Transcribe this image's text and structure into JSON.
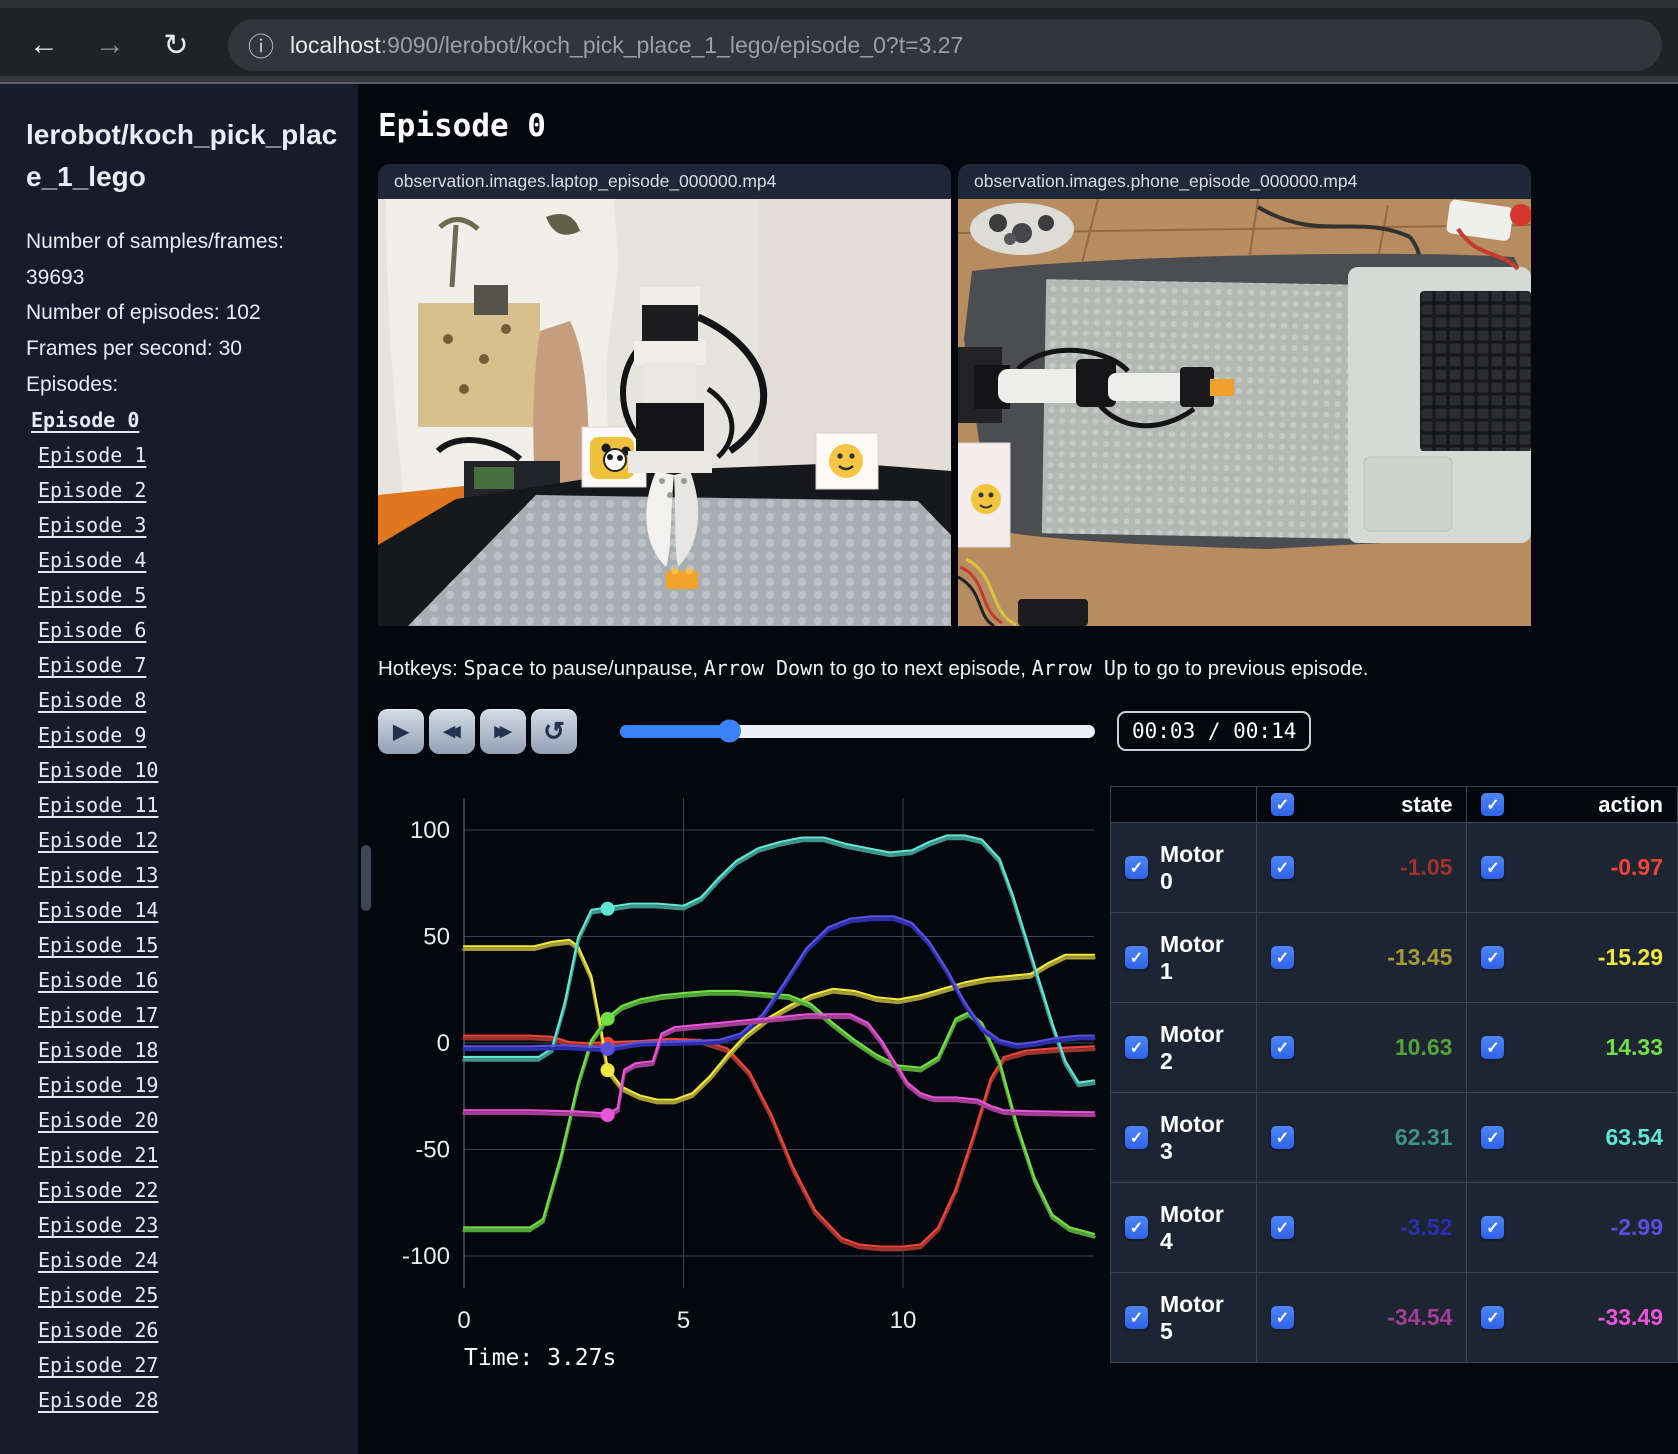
{
  "browser": {
    "url_host": "localhost",
    "url_rest": ":9090/lerobot/koch_pick_place_1_lego/episode_0?t=3.27"
  },
  "sidebar": {
    "title": "lerobot/koch_pick_place_1_lego",
    "info_lines": [
      "Number of samples/frames: 39693",
      "Number of episodes: 102",
      "Frames per second: 30",
      "Episodes:"
    ],
    "episodes": [
      "Episode 0",
      "Episode 1",
      "Episode 2",
      "Episode 3",
      "Episode 4",
      "Episode 5",
      "Episode 6",
      "Episode 7",
      "Episode 8",
      "Episode 9",
      "Episode 10",
      "Episode 11",
      "Episode 12",
      "Episode 13",
      "Episode 14",
      "Episode 15",
      "Episode 16",
      "Episode 17",
      "Episode 18",
      "Episode 19",
      "Episode 20",
      "Episode 21",
      "Episode 22",
      "Episode 23",
      "Episode 24",
      "Episode 25",
      "Episode 26",
      "Episode 27",
      "Episode 28"
    ],
    "active_episode": "Episode 0"
  },
  "main": {
    "title": "Episode 0",
    "videos": [
      {
        "label": "observation.images.laptop_episode_000000.mp4"
      },
      {
        "label": "observation.images.phone_episode_000000.mp4"
      }
    ],
    "hotkeys_segments": [
      {
        "t": "Hotkeys: ",
        "mono": false
      },
      {
        "t": "Space",
        "mono": true
      },
      {
        "t": " to pause/unpause, ",
        "mono": false
      },
      {
        "t": "Arrow Down",
        "mono": true
      },
      {
        "t": " to go to next episode, ",
        "mono": false
      },
      {
        "t": "Arrow Up",
        "mono": true
      },
      {
        "t": " to go to previous episode.",
        "mono": false
      }
    ],
    "player": {
      "time_display": "00:03 / 00:14",
      "progress_pct": 23
    }
  },
  "table": {
    "state_header": "state",
    "action_header": "action"
  },
  "chart_data": {
    "type": "line",
    "xlim": [
      0,
      14.35
    ],
    "ylim": [
      -115,
      115
    ],
    "xticks": [
      0,
      5,
      10
    ],
    "yticks": [
      100,
      50,
      0,
      -50,
      -100
    ],
    "grid": true,
    "current_time": 3.27,
    "time_label": "Time: 3.27s",
    "series": [
      {
        "name": "Motor 0",
        "state_value": "-1.05",
        "action_value": "-0.97",
        "state_color": "#9c332c",
        "action_color": "#ef453a",
        "points": [
          [
            0,
            2
          ],
          [
            1.5,
            2
          ],
          [
            2,
            1.5
          ],
          [
            2.4,
            -1
          ],
          [
            2.8,
            -1.5
          ],
          [
            3.27,
            -1.05
          ],
          [
            4,
            -0.5
          ],
          [
            4.7,
            0.5
          ],
          [
            5.4,
            0
          ],
          [
            6,
            -4
          ],
          [
            6.5,
            -15
          ],
          [
            7,
            -35
          ],
          [
            7.5,
            -60
          ],
          [
            8,
            -80
          ],
          [
            8.6,
            -93
          ],
          [
            9,
            -96
          ],
          [
            9.5,
            -97
          ],
          [
            10,
            -97
          ],
          [
            10.4,
            -96
          ],
          [
            10.8,
            -88
          ],
          [
            11.2,
            -70
          ],
          [
            11.6,
            -45
          ],
          [
            12,
            -18
          ],
          [
            12.3,
            -8
          ],
          [
            12.8,
            -5
          ],
          [
            13.4,
            -4
          ],
          [
            14.35,
            -3
          ]
        ]
      },
      {
        "name": "Motor 1",
        "state_value": "-13.45",
        "action_value": "-15.29",
        "state_color": "#a49a36",
        "action_color": "#f0e83f",
        "points": [
          [
            0,
            44
          ],
          [
            1.6,
            44
          ],
          [
            2,
            46
          ],
          [
            2.4,
            47
          ],
          [
            2.6,
            44
          ],
          [
            2.9,
            30
          ],
          [
            3.1,
            8
          ],
          [
            3.27,
            -13.45
          ],
          [
            3.6,
            -22
          ],
          [
            4,
            -26
          ],
          [
            4.4,
            -28
          ],
          [
            4.8,
            -28
          ],
          [
            5.2,
            -25
          ],
          [
            5.6,
            -17
          ],
          [
            6,
            -7
          ],
          [
            6.4,
            2
          ],
          [
            6.9,
            10
          ],
          [
            7.4,
            16
          ],
          [
            7.9,
            21
          ],
          [
            8.4,
            24
          ],
          [
            8.9,
            23
          ],
          [
            9.4,
            20
          ],
          [
            9.9,
            19
          ],
          [
            10.4,
            21
          ],
          [
            10.9,
            24
          ],
          [
            11.4,
            27
          ],
          [
            11.9,
            29
          ],
          [
            12.4,
            30
          ],
          [
            12.9,
            31
          ],
          [
            13.3,
            36
          ],
          [
            13.7,
            40
          ],
          [
            14.35,
            40
          ]
        ]
      },
      {
        "name": "Motor 2",
        "state_value": "10.63",
        "action_value": "14.33",
        "state_color": "#53a23a",
        "action_color": "#72df47",
        "points": [
          [
            0,
            -88
          ],
          [
            1.5,
            -88
          ],
          [
            1.8,
            -84
          ],
          [
            2.2,
            -55
          ],
          [
            2.6,
            -20
          ],
          [
            2.9,
            0
          ],
          [
            3.27,
            10.63
          ],
          [
            3.6,
            16
          ],
          [
            4,
            19
          ],
          [
            4.5,
            21
          ],
          [
            5,
            22
          ],
          [
            5.6,
            23
          ],
          [
            6.2,
            23
          ],
          [
            6.8,
            22
          ],
          [
            7.4,
            21
          ],
          [
            7.9,
            17
          ],
          [
            8.4,
            8
          ],
          [
            8.9,
            0
          ],
          [
            9.4,
            -7
          ],
          [
            9.9,
            -12
          ],
          [
            10.4,
            -13
          ],
          [
            10.8,
            -8
          ],
          [
            11.2,
            10
          ],
          [
            11.5,
            13
          ],
          [
            11.8,
            8
          ],
          [
            12.2,
            -10
          ],
          [
            12.6,
            -40
          ],
          [
            13,
            -65
          ],
          [
            13.4,
            -82
          ],
          [
            13.8,
            -88
          ],
          [
            14.35,
            -91
          ]
        ]
      },
      {
        "name": "Motor 3",
        "state_value": "62.31",
        "action_value": "63.54",
        "state_color": "#3f948a",
        "action_color": "#62e6d4",
        "points": [
          [
            0,
            -8
          ],
          [
            1.7,
            -8
          ],
          [
            2,
            -4
          ],
          [
            2.3,
            18
          ],
          [
            2.6,
            48
          ],
          [
            2.9,
            61
          ],
          [
            3.27,
            62.31
          ],
          [
            3.8,
            64
          ],
          [
            4.4,
            64
          ],
          [
            5,
            63
          ],
          [
            5.4,
            67
          ],
          [
            5.8,
            76
          ],
          [
            6.2,
            84
          ],
          [
            6.7,
            90
          ],
          [
            7.2,
            93
          ],
          [
            7.7,
            95
          ],
          [
            8.2,
            95
          ],
          [
            8.7,
            92
          ],
          [
            9.2,
            90
          ],
          [
            9.7,
            88
          ],
          [
            10.2,
            89
          ],
          [
            10.6,
            93
          ],
          [
            11,
            96
          ],
          [
            11.4,
            96
          ],
          [
            11.8,
            94
          ],
          [
            12.2,
            85
          ],
          [
            12.5,
            68
          ],
          [
            12.8,
            48
          ],
          [
            13.1,
            28
          ],
          [
            13.4,
            8
          ],
          [
            13.7,
            -10
          ],
          [
            14,
            -20
          ],
          [
            14.35,
            -19
          ]
        ]
      },
      {
        "name": "Motor 4",
        "state_value": "-3.52",
        "action_value": "-2.99",
        "state_color": "#2b2fae",
        "action_color": "#5a50de",
        "points": [
          [
            0,
            -3
          ],
          [
            1.5,
            -3
          ],
          [
            2.2,
            -2.5
          ],
          [
            3.27,
            -3.52
          ],
          [
            4,
            -1
          ],
          [
            5,
            -0.5
          ],
          [
            5.8,
            0
          ],
          [
            6.3,
            3
          ],
          [
            6.8,
            12
          ],
          [
            7.3,
            27
          ],
          [
            7.8,
            43
          ],
          [
            8.3,
            53
          ],
          [
            8.8,
            57
          ],
          [
            9.3,
            58
          ],
          [
            9.8,
            58
          ],
          [
            10.2,
            55
          ],
          [
            10.6,
            46
          ],
          [
            11,
            33
          ],
          [
            11.4,
            18
          ],
          [
            11.8,
            6
          ],
          [
            12.2,
            0
          ],
          [
            12.6,
            -2
          ],
          [
            13,
            -1
          ],
          [
            13.5,
            1
          ],
          [
            14,
            2
          ],
          [
            14.35,
            2
          ]
        ]
      },
      {
        "name": "Motor 5",
        "state_value": "-34.54",
        "action_value": "-33.49",
        "state_color": "#a23e94",
        "action_color": "#ea55d9",
        "points": [
          [
            0,
            -33
          ],
          [
            1.5,
            -33
          ],
          [
            2.5,
            -33.5
          ],
          [
            3.27,
            -34.54
          ],
          [
            3.5,
            -32
          ],
          [
            3.65,
            -14
          ],
          [
            3.9,
            -11
          ],
          [
            4.3,
            -10
          ],
          [
            4.5,
            3
          ],
          [
            4.8,
            6
          ],
          [
            5.3,
            7
          ],
          [
            5.8,
            8
          ],
          [
            6.3,
            9
          ],
          [
            6.8,
            10
          ],
          [
            7.3,
            11
          ],
          [
            7.8,
            12
          ],
          [
            8.3,
            12
          ],
          [
            8.8,
            12
          ],
          [
            9.2,
            8
          ],
          [
            9.5,
            0
          ],
          [
            9.8,
            -10
          ],
          [
            10.1,
            -20
          ],
          [
            10.4,
            -25
          ],
          [
            10.7,
            -27
          ],
          [
            11.2,
            -27
          ],
          [
            11.7,
            -28
          ],
          [
            12,
            -31
          ],
          [
            12.3,
            -33
          ],
          [
            13,
            -33.5
          ],
          [
            14.35,
            -34
          ]
        ]
      }
    ]
  }
}
